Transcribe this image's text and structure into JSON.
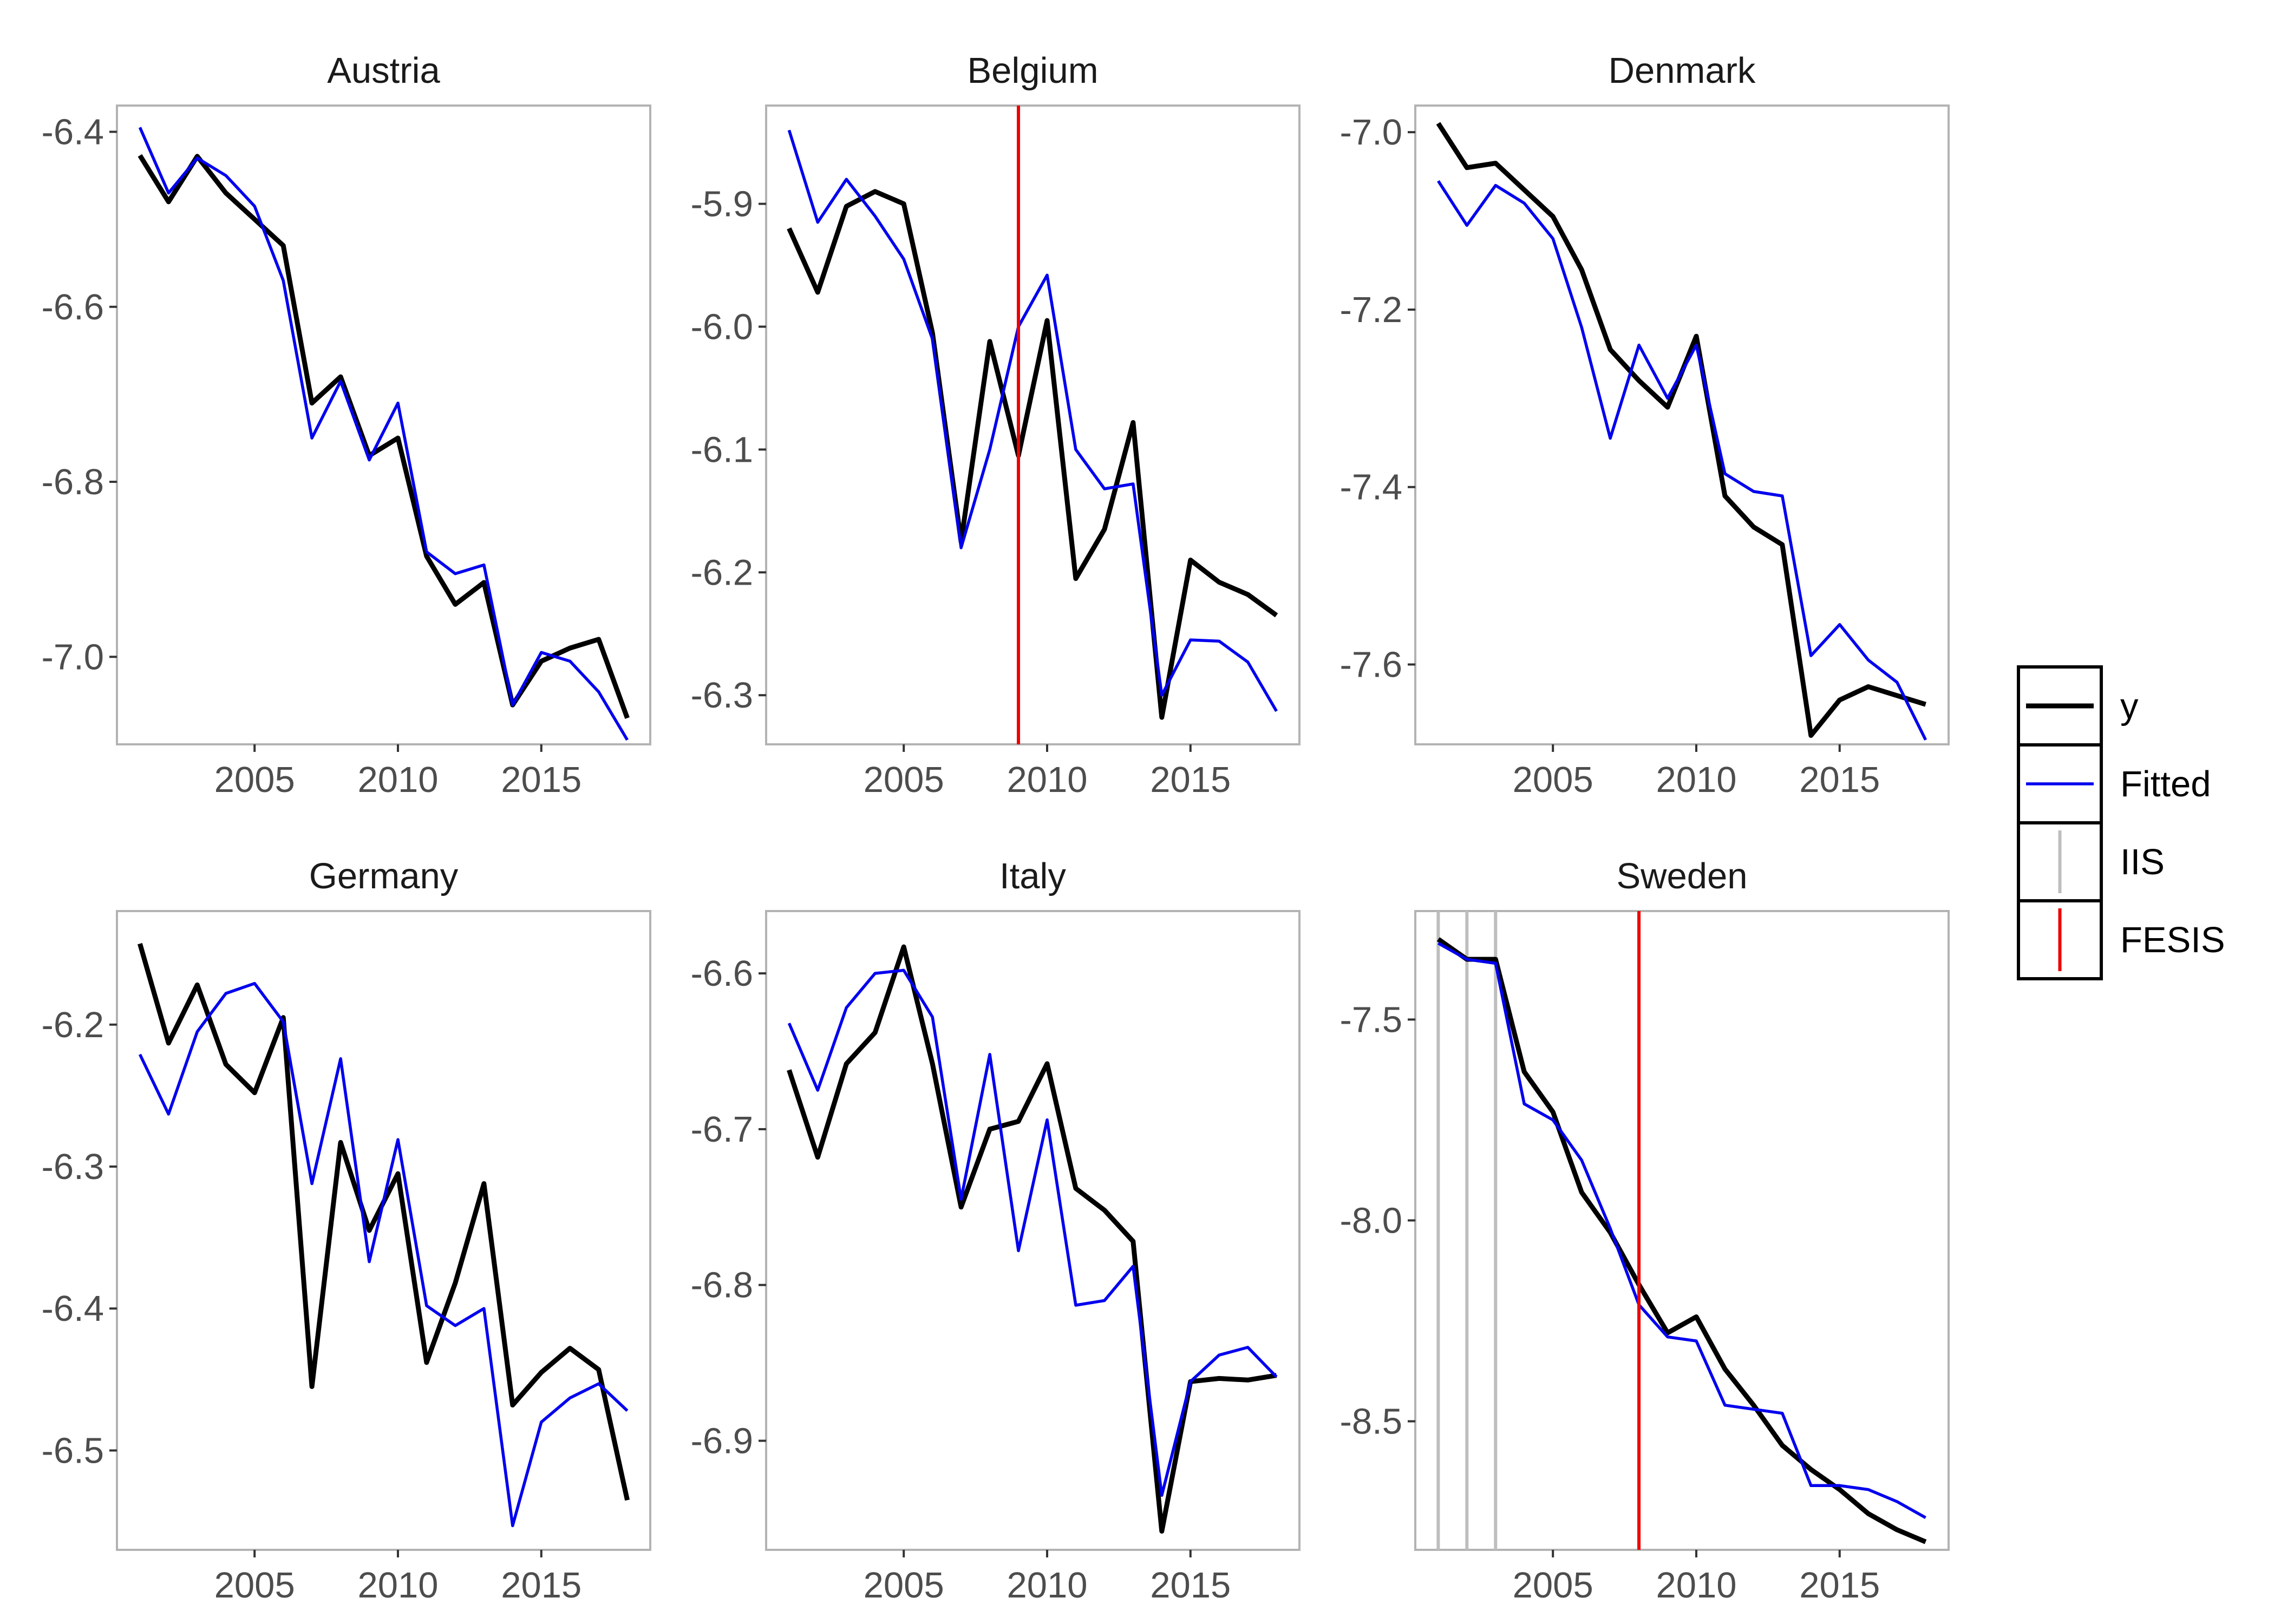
{
  "chart_data": {
    "type": "line",
    "layout": "facet-grid-2x3",
    "x": [
      2001,
      2002,
      2003,
      2004,
      2005,
      2006,
      2007,
      2008,
      2009,
      2010,
      2011,
      2012,
      2013,
      2014,
      2015,
      2016,
      2017,
      2018
    ],
    "x_ticks": [
      2005,
      2010,
      2015
    ],
    "grid": false,
    "legend": {
      "position": "right",
      "items": [
        {
          "label": "y",
          "key": "y",
          "kind": "line",
          "color": "#000000"
        },
        {
          "label": "Fitted",
          "key": "fitted",
          "kind": "line",
          "color": "#0000ee"
        },
        {
          "label": "IIS",
          "key": "iis",
          "kind": "vline",
          "color": "#bebebe"
        },
        {
          "label": "FESIS",
          "key": "fesis",
          "kind": "vline",
          "color": "#ee0000"
        }
      ]
    },
    "panels": [
      {
        "title": "Austria",
        "ylim": [
          -7.1,
          -6.37
        ],
        "y_ticks": [
          -6.4,
          -6.6,
          -6.8,
          -7.0
        ],
        "y_tick_labels": [
          "-6.4",
          "-6.6",
          "-6.8",
          "-7.0"
        ],
        "y": [
          -6.427,
          -6.48,
          -6.428,
          -6.47,
          -6.5,
          -6.53,
          -6.71,
          -6.68,
          -6.77,
          -6.75,
          -6.885,
          -6.94,
          -6.915,
          -7.055,
          -7.005,
          -6.99,
          -6.98,
          -7.07
        ],
        "fitted": [
          -6.395,
          -6.47,
          -6.43,
          -6.45,
          -6.485,
          -6.57,
          -6.75,
          -6.685,
          -6.775,
          -6.71,
          -6.88,
          -6.905,
          -6.895,
          -7.055,
          -6.995,
          -7.005,
          -7.04,
          -7.095
        ],
        "iis": [],
        "fesis": []
      },
      {
        "title": "Belgium",
        "ylim": [
          -6.34,
          -5.82
        ],
        "y_ticks": [
          -5.9,
          -6.0,
          -6.1,
          -6.2,
          -6.3
        ],
        "y_tick_labels": [
          "-5.9",
          "-6.0",
          "-6.1",
          "-6.2",
          "-6.3"
        ],
        "y": [
          -5.92,
          -5.972,
          -5.902,
          -5.89,
          -5.9,
          -6.005,
          -6.175,
          -6.012,
          -6.105,
          -5.995,
          -6.205,
          -6.165,
          -6.078,
          -6.318,
          -6.19,
          -6.208,
          -6.218,
          -6.235
        ],
        "fitted": [
          -5.84,
          -5.915,
          -5.88,
          -5.91,
          -5.945,
          -6.01,
          -6.18,
          -6.1,
          -6.0,
          -5.958,
          -6.1,
          -6.132,
          -6.128,
          -6.3,
          -6.255,
          -6.256,
          -6.273,
          -6.313
        ],
        "iis": [],
        "fesis": [
          2009
        ]
      },
      {
        "title": "Denmark",
        "ylim": [
          -7.69,
          -6.97
        ],
        "y_ticks": [
          -7.0,
          -7.2,
          -7.4,
          -7.6
        ],
        "y_tick_labels": [
          "-7.0",
          "-7.2",
          "-7.4",
          "-7.6"
        ],
        "y": [
          -6.99,
          -7.04,
          -7.035,
          -7.065,
          -7.095,
          -7.155,
          -7.245,
          -7.28,
          -7.31,
          -7.23,
          -7.41,
          -7.445,
          -7.465,
          -7.68,
          -7.64,
          -7.625,
          -7.635,
          -7.645
        ],
        "fitted": [
          -7.055,
          -7.105,
          -7.06,
          -7.08,
          -7.12,
          -7.22,
          -7.345,
          -7.24,
          -7.3,
          -7.24,
          -7.385,
          -7.405,
          -7.41,
          -7.59,
          -7.555,
          -7.595,
          -7.62,
          -7.685
        ],
        "iis": [],
        "fesis": []
      },
      {
        "title": "Germany",
        "ylim": [
          -6.57,
          -6.12
        ],
        "y_ticks": [
          -6.2,
          -6.3,
          -6.4,
          -6.5
        ],
        "y_tick_labels": [
          "-6.2",
          "-6.3",
          "-6.4",
          "-6.5"
        ],
        "y": [
          -6.143,
          -6.213,
          -6.172,
          -6.228,
          -6.248,
          -6.195,
          -6.455,
          -6.283,
          -6.345,
          -6.305,
          -6.438,
          -6.382,
          -6.312,
          -6.468,
          -6.445,
          -6.428,
          -6.443,
          -6.535
        ],
        "fitted": [
          -6.221,
          -6.263,
          -6.205,
          -6.178,
          -6.171,
          -6.198,
          -6.312,
          -6.224,
          -6.367,
          -6.281,
          -6.398,
          -6.412,
          -6.4,
          -6.553,
          -6.48,
          -6.463,
          -6.453,
          -6.472
        ],
        "iis": [],
        "fesis": []
      },
      {
        "title": "Italy",
        "ylim": [
          -6.97,
          -6.56
        ],
        "y_ticks": [
          -6.6,
          -6.7,
          -6.8,
          -6.9
        ],
        "y_tick_labels": [
          "-6.6",
          "-6.7",
          "-6.8",
          "-6.9"
        ],
        "y": [
          -6.662,
          -6.718,
          -6.658,
          -6.638,
          -6.583,
          -6.658,
          -6.75,
          -6.7,
          -6.695,
          -6.658,
          -6.738,
          -6.752,
          -6.772,
          -6.958,
          -6.862,
          -6.86,
          -6.861,
          -6.858
        ],
        "fitted": [
          -6.632,
          -6.675,
          -6.622,
          -6.6,
          -6.598,
          -6.628,
          -6.745,
          -6.652,
          -6.778,
          -6.694,
          -6.813,
          -6.81,
          -6.788,
          -6.935,
          -6.862,
          -6.845,
          -6.84,
          -6.859
        ],
        "iis": [],
        "fesis": []
      },
      {
        "title": "Sweden",
        "ylim": [
          -8.82,
          -7.23
        ],
        "y_ticks": [
          -7.5,
          -8.0,
          -8.5
        ],
        "y_tick_labels": [
          "-7.5",
          "-8.0",
          "-8.5"
        ],
        "y": [
          -7.3,
          -7.35,
          -7.35,
          -7.63,
          -7.73,
          -7.93,
          -8.03,
          -8.16,
          -8.28,
          -8.24,
          -8.37,
          -8.46,
          -8.56,
          -8.62,
          -8.67,
          -8.73,
          -8.77,
          -8.8
        ],
        "fitted": [
          -7.31,
          -7.35,
          -7.36,
          -7.71,
          -7.75,
          -7.85,
          -8.02,
          -8.21,
          -8.29,
          -8.3,
          -8.46,
          -8.47,
          -8.48,
          -8.66,
          -8.66,
          -8.67,
          -8.7,
          -8.74
        ],
        "iis": [
          2001,
          2002,
          2003
        ],
        "fesis": [
          2008
        ]
      }
    ]
  }
}
